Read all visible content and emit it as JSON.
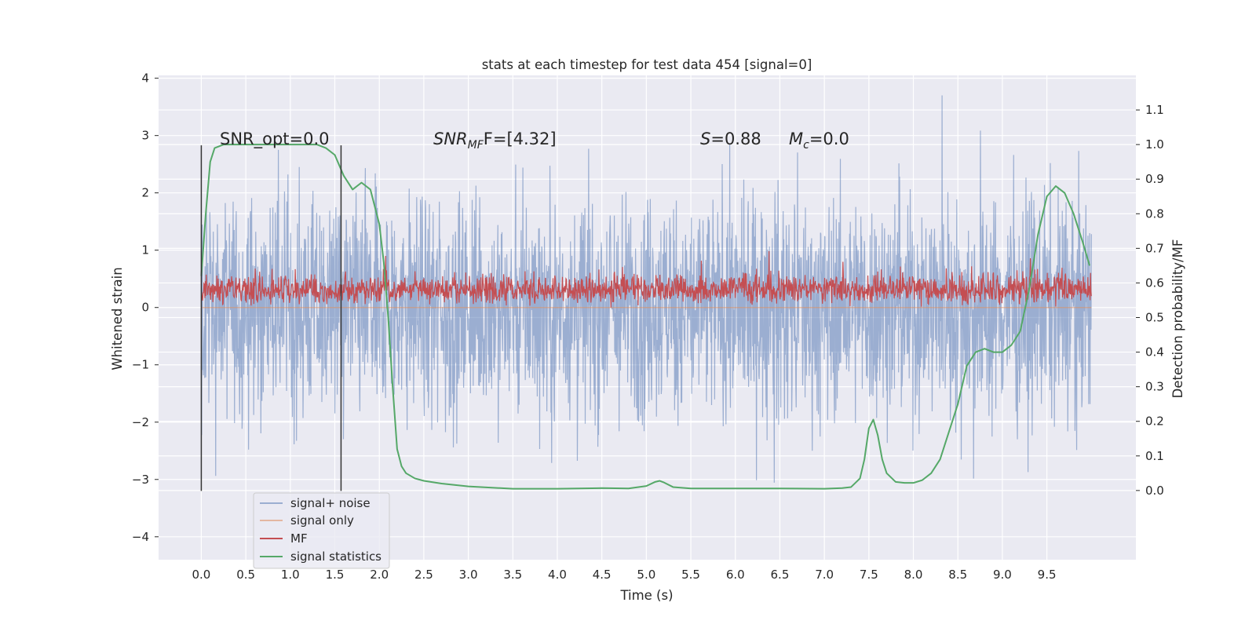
{
  "chart_data": {
    "type": "line",
    "title": "stats at each timestep for test data 454 [signal=0]",
    "xlabel": "Time (s)",
    "ylabel": "Whitened strain",
    "ylabel_right": "Detection probability/MF",
    "xlim": [
      -0.48,
      10.5
    ],
    "ylim": [
      -4.4,
      4.05
    ],
    "ylim_right": [
      -0.2,
      1.2
    ],
    "xticks": [
      0.0,
      0.5,
      1.0,
      1.5,
      2.0,
      2.5,
      3.0,
      3.5,
      4.0,
      4.5,
      5.0,
      5.5,
      6.0,
      6.5,
      7.0,
      7.5,
      8.0,
      8.5,
      9.0,
      9.5
    ],
    "xtick_labels": [
      "0.0",
      "0.5",
      "1.0",
      "1.5",
      "2.0",
      "2.5",
      "3.0",
      "3.5",
      "4.0",
      "4.5",
      "5.0",
      "5.5",
      "6.0",
      "6.5",
      "7.0",
      "7.5",
      "8.0",
      "8.5",
      "9.0",
      "9.5"
    ],
    "yticks": [
      -4,
      -3,
      -2,
      -1,
      0,
      1,
      2,
      3,
      4
    ],
    "ytick_labels": [
      "−4",
      "−3",
      "−2",
      "−1",
      "0",
      "1",
      "2",
      "3",
      "4"
    ],
    "yticks_right": [
      0.0,
      0.1,
      0.2,
      0.3,
      0.4,
      0.5,
      0.6,
      0.7,
      0.8,
      0.9,
      1.0,
      1.1
    ],
    "ytick_labels_right": [
      "0.0",
      "0.1",
      "0.2",
      "0.3",
      "0.4",
      "0.5",
      "0.6",
      "0.7",
      "0.8",
      "0.9",
      "1.0",
      "1.1"
    ],
    "grid": true,
    "legend_position": "lower-left",
    "annotations": {
      "snr_opt": "SNR_opt=0.0",
      "snr_mf_base": "SNR",
      "snr_mf_sub": "MF",
      "snr_mf_rest": "F=[4.32]",
      "s_sym": "S",
      "s_rest": "=0.88",
      "mc_base": "M",
      "mc_sub": "c",
      "mc_rest": "=0.0"
    },
    "vlines": [
      0.0,
      1.57
    ],
    "series": [
      {
        "name": "signal+ noise",
        "color": "#4c72b0",
        "alpha": 0.5,
        "axis": "left",
        "kind": "noise",
        "t_range": [
          0.0,
          10.0
        ],
        "envelope": [
          -3.5,
          3.7
        ]
      },
      {
        "name": "signal only",
        "color": "#dd8452",
        "alpha": 0.5,
        "axis": "left",
        "kind": "flat",
        "value": 0.0,
        "t_range": [
          0.0,
          10.0
        ]
      },
      {
        "name": "MF",
        "color": "#c44e52",
        "alpha": 1.0,
        "axis": "left",
        "kind": "mf",
        "t_range": [
          0.0,
          10.0
        ],
        "envelope": [
          0.0,
          1.0
        ]
      },
      {
        "name": "signal statistics",
        "color": "#55a868",
        "axis": "right",
        "kind": "line",
        "x": [
          0.0,
          0.05,
          0.1,
          0.15,
          0.25,
          0.4,
          0.6,
          0.8,
          1.0,
          1.2,
          1.3,
          1.4,
          1.5,
          1.6,
          1.7,
          1.8,
          1.9,
          2.0,
          2.05,
          2.1,
          2.15,
          2.2,
          2.25,
          2.3,
          2.4,
          2.5,
          2.7,
          3.0,
          3.5,
          4.0,
          4.5,
          4.8,
          5.0,
          5.1,
          5.15,
          5.2,
          5.3,
          5.5,
          6.0,
          6.5,
          7.0,
          7.2,
          7.3,
          7.4,
          7.45,
          7.5,
          7.55,
          7.6,
          7.65,
          7.7,
          7.8,
          7.9,
          8.0,
          8.1,
          8.2,
          8.3,
          8.4,
          8.5,
          8.6,
          8.7,
          8.8,
          8.9,
          9.0,
          9.1,
          9.2,
          9.3,
          9.4,
          9.5,
          9.6,
          9.7,
          9.8,
          9.9,
          9.98
        ],
        "y": [
          0.62,
          0.8,
          0.95,
          0.99,
          1.0,
          1.0,
          1.0,
          1.0,
          1.0,
          1.0,
          1.0,
          0.99,
          0.97,
          0.91,
          0.87,
          0.89,
          0.87,
          0.77,
          0.66,
          0.5,
          0.3,
          0.12,
          0.07,
          0.05,
          0.035,
          0.028,
          0.02,
          0.012,
          0.005,
          0.005,
          0.007,
          0.006,
          0.013,
          0.025,
          0.028,
          0.023,
          0.01,
          0.006,
          0.006,
          0.006,
          0.005,
          0.007,
          0.01,
          0.035,
          0.09,
          0.18,
          0.205,
          0.16,
          0.09,
          0.05,
          0.025,
          0.022,
          0.022,
          0.03,
          0.05,
          0.09,
          0.17,
          0.25,
          0.36,
          0.4,
          0.41,
          0.4,
          0.4,
          0.42,
          0.46,
          0.58,
          0.74,
          0.85,
          0.88,
          0.86,
          0.8,
          0.72,
          0.65
        ]
      }
    ]
  }
}
